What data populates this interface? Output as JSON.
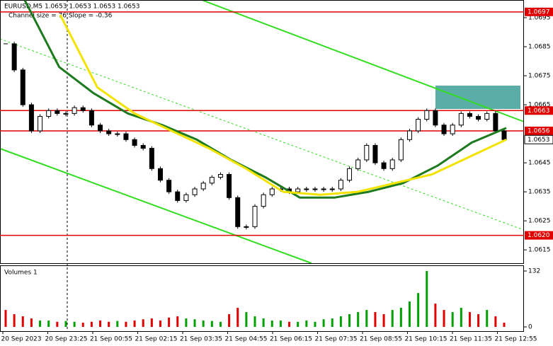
{
  "chart_data": {
    "type": "candlestick",
    "title": "EURUSD,M5 1.0653 1.0653 1.0653 1.0653",
    "annotation": "Channel size = 76 Slope = -0.36",
    "close": [
      1.0686,
      1.0677,
      1.0665,
      1.0656,
      1.0661,
      1.0663,
      1.0662,
      1.0662,
      1.0664,
      1.0663,
      1.0658,
      1.0656,
      1.0655,
      1.0655,
      1.0653,
      1.0651,
      1.065,
      1.0643,
      1.0639,
      1.0635,
      1.0632,
      1.0634,
      1.0636,
      1.0638,
      1.064,
      1.0641,
      1.0633,
      1.0623,
      1.0623,
      1.063,
      1.0634,
      1.0636,
      1.0636,
      1.0635,
      1.0636,
      1.0636,
      1.0636,
      1.0636,
      1.0636,
      1.0639,
      1.0643,
      1.0646,
      1.0651,
      1.0645,
      1.0643,
      1.0646,
      1.0653,
      1.0656,
      1.066,
      1.0663,
      1.0658,
      1.0655,
      1.0658,
      1.0662,
      1.0661,
      1.066,
      1.0662,
      1.0656,
      1.0653
    ],
    "up_color": "#00a000",
    "down_color": "#e00000",
    "series": [
      {
        "color": "#1e7a1e",
        "values": [
          1.0701,
          1.0678,
          1.0669,
          1.0662,
          1.0658,
          1.0653,
          1.0646,
          1.064,
          1.0633,
          1.0633,
          1.0635,
          1.0638,
          1.0644,
          1.0652,
          1.0657
        ]
      },
      {
        "color": "#f2e400",
        "values": [
          1.0696,
          1.0671,
          1.0662,
          1.0656,
          1.065,
          1.0643,
          1.0635,
          1.0634,
          1.0635,
          1.0638,
          1.0641,
          1.0647,
          1.0653
        ]
      }
    ],
    "ylim": [
      1.06104,
      1.07011
    ],
    "yticks": [
      1.0695,
      1.0685,
      1.0675,
      1.0665,
      1.0645,
      1.0635,
      1.0625,
      1.0615
    ],
    "levels": [
      1.0697,
      1.0663,
      1.0656,
      {
        "value": 1.062,
        "label": "1.0620"
      }
    ],
    "level_color": "#e00000",
    "last_price": 1.0653,
    "x_labels": [
      "20 Sep 2023",
      "20 Sep 23:25",
      "21 Sep 00:55",
      "21 Sep 02:15",
      "21 Sep 03:35",
      "21 Sep 04:55",
      "21 Sep 06:15",
      "21 Sep 07:35",
      "21 Sep 08:55",
      "21 Sep 10:15",
      "21 Sep 11:35",
      "21 Sep 12:55"
    ],
    "volume": {
      "label": "Volumes 1",
      "values": [
        40,
        30,
        25,
        20,
        15,
        15,
        12,
        14,
        12,
        10,
        12,
        15,
        12,
        14,
        12,
        15,
        18,
        20,
        15,
        22,
        25,
        20,
        18,
        15,
        14,
        12,
        30,
        45,
        35,
        25,
        20,
        15,
        15,
        12,
        12,
        15,
        12,
        18,
        20,
        25,
        30,
        35,
        40,
        35,
        30,
        40,
        45,
        60,
        80,
        132,
        55,
        40,
        35,
        45,
        35,
        30,
        40,
        25,
        10
      ],
      "ylim": [
        0,
        132
      ],
      "yticks": [
        0,
        132
      ]
    }
  }
}
